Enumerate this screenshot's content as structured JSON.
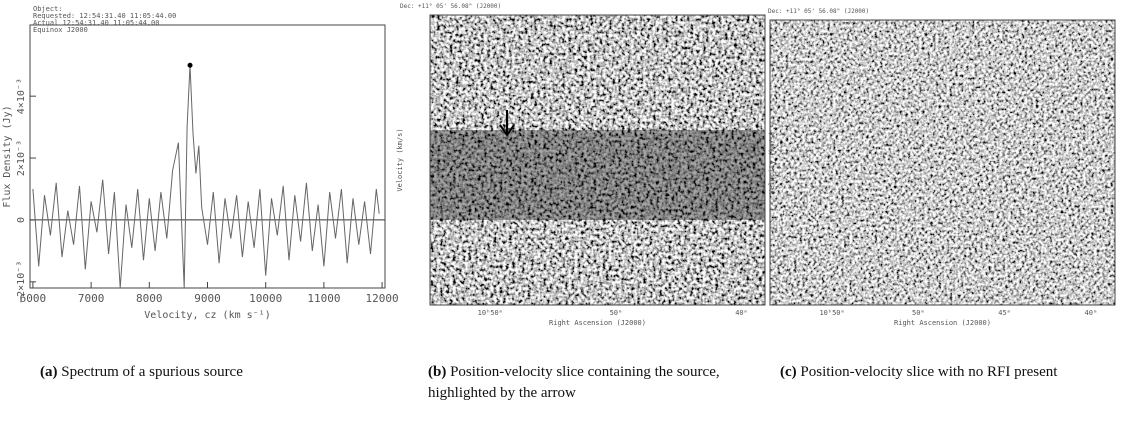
{
  "chart_data": {
    "type": "line",
    "header_lines": [
      "Object:",
      "Requested: 12:54:31.40   11:05:44.00",
      "Actual     12:54:31.40   11:05:44.00",
      "Equinox  J2000"
    ],
    "x_label": "Velocity, cz (km s⁻¹)",
    "y_label": "Flux Density (Jy)",
    "color": "#666",
    "x": [
      6000,
      6100,
      6200,
      6300,
      6400,
      6500,
      6600,
      6700,
      6800,
      6900,
      7000,
      7100,
      7200,
      7300,
      7400,
      7500,
      7600,
      7700,
      7800,
      7900,
      8000,
      8100,
      8200,
      8300,
      8400,
      8500,
      8600,
      8650,
      8700,
      8750,
      8800,
      8850,
      8900,
      9000,
      9100,
      9200,
      9300,
      9400,
      9500,
      9600,
      9700,
      9800,
      9900,
      10000,
      10100,
      10200,
      10300,
      10400,
      10500,
      10600,
      10700,
      10800,
      10900,
      11000,
      11100,
      11200,
      11300,
      11400,
      11500,
      11600,
      11700,
      11800,
      11900,
      11950
    ],
    "values": [
      0.001,
      -0.0015,
      0.0008,
      -0.0005,
      0.0012,
      -0.0012,
      0.0003,
      -0.0008,
      0.0011,
      -0.0016,
      0.0006,
      -0.0004,
      0.0013,
      -0.0011,
      0.0009,
      -0.0022,
      0.0005,
      -0.0009,
      0.001,
      -0.0013,
      0.0007,
      -0.001,
      0.0009,
      -0.0006,
      0.0016,
      0.0025,
      -0.0022,
      0.003,
      0.005,
      0.0028,
      0.0015,
      0.0024,
      0.0004,
      -0.0008,
      0.0009,
      -0.0014,
      0.0007,
      -0.0006,
      0.0008,
      -0.0012,
      0.0006,
      -0.0009,
      0.001,
      -0.0018,
      0.0007,
      -0.0005,
      0.0011,
      -0.0013,
      0.0008,
      -0.0007,
      0.0012,
      -0.001,
      0.0005,
      -0.0015,
      0.0009,
      -0.0006,
      0.001,
      -0.0014,
      0.0007,
      -0.0008,
      0.0006,
      -0.0011,
      0.001,
      0.0002
    ],
    "xlim": [
      5950,
      12050
    ],
    "ylim": [
      -0.0022,
      0.0063
    ],
    "xticks": [
      6000,
      7000,
      8000,
      9000,
      10000,
      11000,
      12000
    ],
    "yticks": [
      {
        "value": -0.002,
        "label": "−2×10⁻³"
      },
      0,
      {
        "value": 0.002,
        "label": "2×10⁻³"
      },
      {
        "value": 0.004,
        "label": "4×10⁻³"
      }
    ]
  },
  "panels": [
    {
      "label": "(a)",
      "caption": "Spectrum of a spurious source"
    },
    {
      "label": "(b)",
      "caption": "Position-velocity slice containing the source, highlighted by the arrow",
      "dec": "Dec: +11° 05' 56.08\" (J2000)",
      "x_label": "Right Ascension (J2000)",
      "y_label": "Velocity (km/s)",
      "ra_ticks": [
        "10ʰ50ᵐ",
        "50ᵐ",
        "40ᵐ"
      ]
    },
    {
      "label": "(c)",
      "caption": "Position-velocity slice with no RFI present",
      "dec": "Dec: +11° 05' 56.08\" (J2000)",
      "x_label": "Right Ascension (J2000)",
      "y_label": "Velocity (km/s)",
      "ra_ticks": [
        "10ʰ50ᵐ",
        "50ᵐ",
        "45ᵐ",
        "40ᵐ"
      ]
    }
  ]
}
